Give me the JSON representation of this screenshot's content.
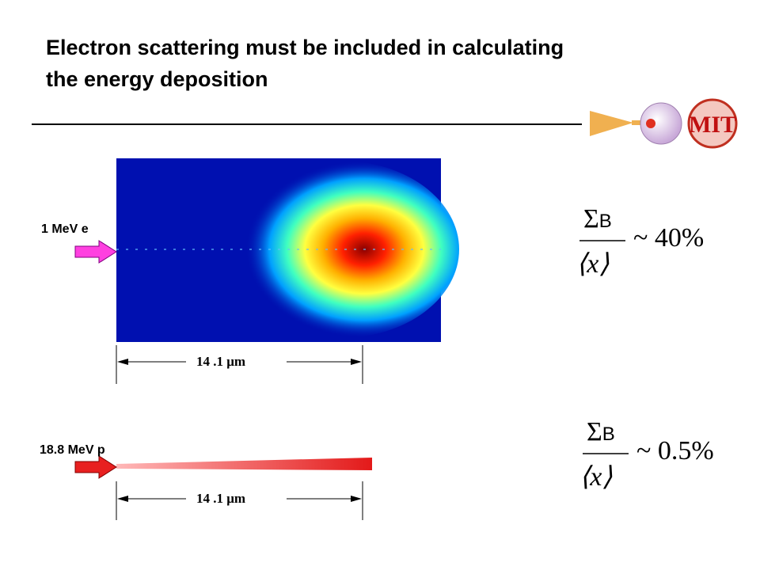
{
  "title_lines": [
    "Electron scattering must be included in calculating",
    "the energy deposition"
  ],
  "logo": "MIT",
  "panels": [
    {
      "particle": "1 MeV e",
      "scale": "14 .1 μm",
      "numerator": "Σ",
      "subscript": "B",
      "denominator": "⟨x⟩",
      "ratio": "~ 40%"
    },
    {
      "particle": "18.8 MeV p",
      "scale": "14 .1 μm",
      "numerator": "Σ",
      "subscript": "B",
      "denominator": "⟨x⟩",
      "ratio": "~ 0.5%"
    }
  ]
}
